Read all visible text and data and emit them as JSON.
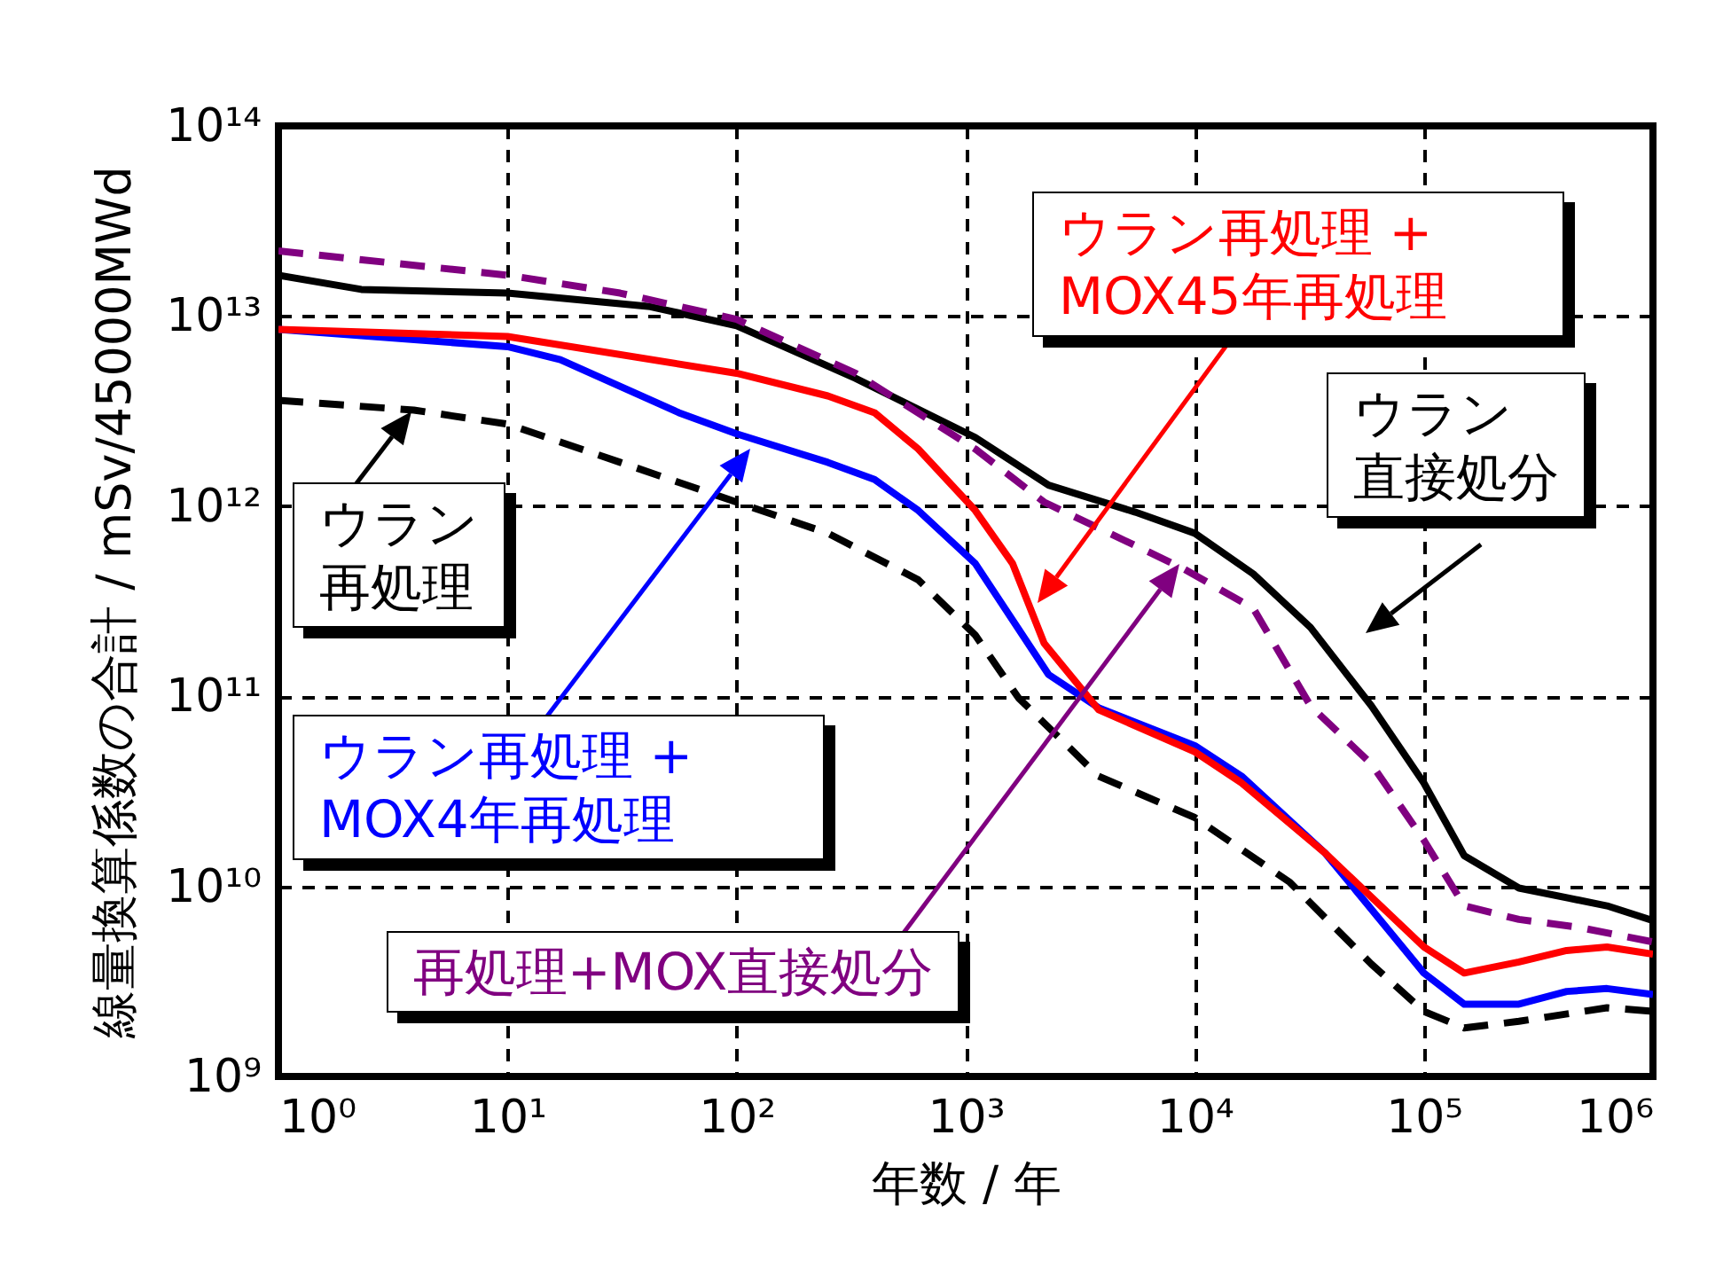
{
  "chart_data": {
    "type": "line",
    "xlabel": "年数 / 年",
    "ylabel": "線量換算係数の合計 / mSv/45000MWd",
    "log": "xy",
    "grid": true,
    "marker": "none",
    "xlim": [
      1,
      1000000
    ],
    "ylim": [
      1000000000.0,
      100000000000000.0
    ],
    "xticks": [
      {
        "value": 1,
        "label": "10⁰"
      },
      {
        "value": 10,
        "label": "10¹"
      },
      {
        "value": 100,
        "label": "10²"
      },
      {
        "value": 1000,
        "label": "10³"
      },
      {
        "value": 10000,
        "label": "10⁴"
      },
      {
        "value": 100000,
        "label": "10⁵"
      },
      {
        "value": 1000000,
        "label": "10⁶"
      }
    ],
    "yticks": [
      {
        "value": 1000000000.0,
        "label": "10⁹"
      },
      {
        "value": 10000000000.0,
        "label": "10¹⁰"
      },
      {
        "value": 100000000000.0,
        "label": "10¹¹"
      },
      {
        "value": 1000000000000.0,
        "label": "10¹²"
      },
      {
        "value": 10000000000000.0,
        "label": "10¹³"
      },
      {
        "value": 100000000000000.0,
        "label": "10¹⁴"
      }
    ],
    "series": [
      {
        "color": "#000000",
        "line_style": "solid",
        "x": [
          1,
          2.3,
          10,
          42,
          100,
          330,
          1100,
          2300,
          5500,
          10000,
          18000,
          32000,
          59000,
          100000,
          150000,
          260000,
          630000,
          1000000
        ],
        "values": [
          16400000000000.0,
          13800000000000.0,
          13200000000000.0,
          11200000000000.0,
          8900000000000.0,
          4700000000000.0,
          2300000000000.0,
          1290000000000.0,
          930000000000.0,
          720000000000.0,
          440000000000.0,
          230000000000.0,
          89000000000.0,
          35000000000.0,
          14500000000.0,
          9800000000.0,
          7900000000.0,
          6600000000.0
        ]
      },
      {
        "color": "#800080",
        "line_style": "dashed",
        "x": [
          1,
          10,
          31,
          100,
          330,
          1100,
          2200,
          8900,
          18000,
          32000,
          59000,
          100000,
          150000,
          260000,
          470000,
          1000000
        ],
        "values": [
          22000000000000.0,
          16400000000000.0,
          13200000000000.0,
          9600000000000.0,
          5000000000000.0,
          2000000000000.0,
          1050000000000.0,
          470000000000.0,
          290000000000.0,
          89000000000.0,
          44000000000.0,
          17500000000.0,
          7900000000.0,
          6700000000.0,
          6100000000.0,
          5100000000.0
        ]
      },
      {
        "color": "#0000ff",
        "line_style": "solid",
        "x": [
          1,
          10,
          17,
          56,
          100,
          250,
          400,
          620,
          1100,
          2300,
          3800,
          10000,
          16000,
          37000,
          100000,
          150000,
          260000,
          420000,
          630000,
          1000000
        ],
        "values": [
          8500000000000.0,
          6900000000000.0,
          5900000000000.0,
          3100000000000.0,
          2400000000000.0,
          1700000000000.0,
          1380000000000.0,
          950000000000.0,
          500000000000.0,
          130000000000.0,
          87000000000.0,
          55000000000.0,
          38000000000.0,
          15000000000.0,
          3500000000.0,
          2400000000.0,
          2400000000.0,
          2800000000.0,
          2900000000.0,
          2700000000.0
        ]
      },
      {
        "color": "#ff0000",
        "line_style": "solid",
        "x": [
          1,
          10,
          100,
          250,
          400,
          620,
          1100,
          1600,
          2200,
          3800,
          10000,
          16000,
          37000,
          100000,
          150000,
          260000,
          420000,
          630000,
          1000000
        ],
        "values": [
          8500000000000.0,
          7800000000000.0,
          5000000000000.0,
          3800000000000.0,
          3100000000000.0,
          2000000000000.0,
          950000000000.0,
          500000000000.0,
          190000000000.0,
          85000000000.0,
          51000000000.0,
          35000000000.0,
          15000000000.0,
          4800000000.0,
          3500000000.0,
          4000000000.0,
          4600000000.0,
          4800000000.0,
          4400000000.0
        ]
      },
      {
        "color": "#000000",
        "line_style": "dashed",
        "x": [
          1,
          3.9,
          10,
          31,
          100,
          250,
          620,
          1100,
          1700,
          3800,
          10000,
          26000,
          59000,
          100000,
          150000,
          260000,
          630000,
          1000000
        ],
        "values": [
          3600000000000.0,
          3200000000000.0,
          2700000000000.0,
          1700000000000.0,
          1050000000000.0,
          720000000000.0,
          410000000000.0,
          210000000000.0,
          98000000000.0,
          38000000000.0,
          23000000000.0,
          10500000000.0,
          3900000000.0,
          2200000000.0,
          1800000000.0,
          1950000000.0,
          2300000000.0,
          2200000000.0
        ]
      }
    ],
    "annotations": [
      "ウラン再処理",
      "ウラン再処理 + MOX4年再処理",
      "ウラン再処理 + MOX45年再処理",
      "ウラン直接処分",
      "再処理+MOX直接処分"
    ]
  }
}
